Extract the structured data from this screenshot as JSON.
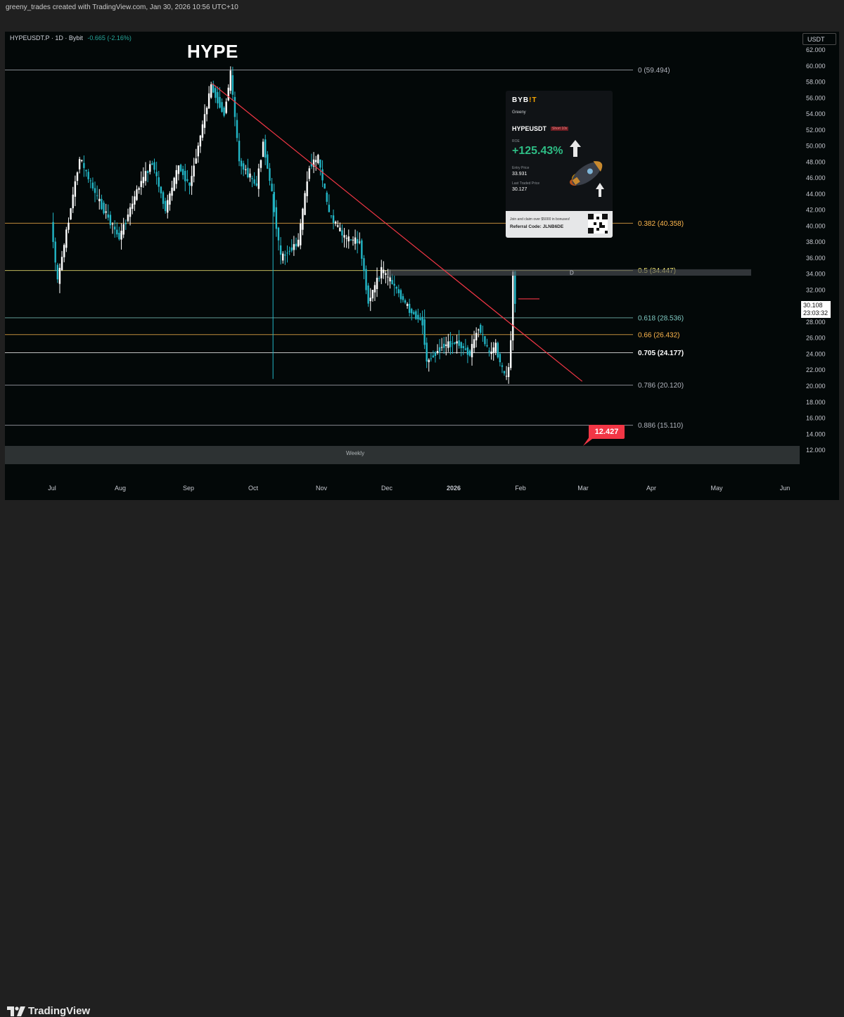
{
  "header": {
    "credit": "greeny_trades created with TradingView.com, Jan 30, 2026 10:56 UTC+10",
    "symbol": "HYPEUSDT.P · 1D · Bybit",
    "change": "-0.665 (-2.16%)",
    "currency_button": "USDT"
  },
  "footer": {
    "logo_text": "TradingView"
  },
  "annotations": {
    "title": "HYPE",
    "weekly": "Weekly",
    "target": "12.427",
    "marker_d": "D"
  },
  "current_price": {
    "value": "30.108",
    "countdown": "23:03:32"
  },
  "promo": {
    "brand": "BYB",
    "brand_accent": "!T",
    "user": "Greeny",
    "pair": "HYPEUSDT",
    "side": "Short 10x",
    "roe_label": "ROE",
    "roe": "+125.43%",
    "entry_label": "Entry Price",
    "entry": "33.931",
    "last_label": "Last Traded Price",
    "last": "30.127",
    "bonus_text": "Join and claim over $5000 in bonuses!",
    "referral": "Referral Code: JLNB6DE"
  },
  "colors": {
    "up": "#ffffff",
    "down": "#22b6c6",
    "trend": "#f23645",
    "background": "#030808"
  },
  "chart_data": {
    "type": "candlestick",
    "y_axis": {
      "range": [
        10,
        63
      ],
      "ticks": [
        "62.000",
        "60.000",
        "58.000",
        "56.000",
        "54.000",
        "52.000",
        "50.000",
        "48.000",
        "46.000",
        "44.000",
        "42.000",
        "40.000",
        "38.000",
        "36.000",
        "34.000",
        "32.000",
        "30.000",
        "28.000",
        "26.000",
        "24.000",
        "22.000",
        "20.000",
        "18.000",
        "16.000",
        "14.000",
        "12.000"
      ]
    },
    "x_axis": {
      "ticks": [
        "Jul",
        "Aug",
        "Sep",
        "Oct",
        "Nov",
        "Dec",
        "2026",
        "Feb",
        "Mar",
        "Apr",
        "May",
        "Jun"
      ]
    },
    "fib_levels": [
      {
        "label": "0 (59.494)",
        "value": 59.494,
        "color": "#b2b5be"
      },
      {
        "label": "0.382 (40.358)",
        "value": 40.358,
        "color": "#ffb74d"
      },
      {
        "label": "0.5 (34.447)",
        "value": 34.447,
        "color": "#fff176"
      },
      {
        "label": "0.618 (28.536)",
        "value": 28.536,
        "color": "#80cbc4"
      },
      {
        "label": "0.66 (26.432)",
        "value": 26.432,
        "color": "#ffb74d"
      },
      {
        "label": "0.705 (24.177)",
        "value": 24.177,
        "color": "#ffffff"
      },
      {
        "label": "0.786 (20.120)",
        "value": 20.12,
        "color": "#b2b5be"
      },
      {
        "label": "0.886 (15.110)",
        "value": 15.11,
        "color": "#b2b5be"
      }
    ],
    "trendline": {
      "from": [
        "Sep 12",
        57.8
      ],
      "to": [
        "Feb 28",
        20.6
      ]
    },
    "weekly_zone": [
      10.1,
      12.5
    ],
    "resistance_zone": [
      33.8,
      34.6
    ],
    "target": 12.427,
    "last_price": 30.108,
    "key_points": [
      {
        "date": "Jul 1",
        "close": 40.5
      },
      {
        "date": "Jul 4",
        "close": 33.0
      },
      {
        "date": "Jul 14",
        "close": 48.5
      },
      {
        "date": "Jul 22",
        "close": 43.5
      },
      {
        "date": "Aug 1",
        "close": 38.5
      },
      {
        "date": "Aug 10",
        "close": 45.0
      },
      {
        "date": "Aug 16",
        "close": 48.0
      },
      {
        "date": "Aug 22",
        "close": 42.0
      },
      {
        "date": "Aug 28",
        "close": 47.5
      },
      {
        "date": "Sep 2",
        "close": 45.0
      },
      {
        "date": "Sep 12",
        "close": 57.5
      },
      {
        "date": "Sep 18",
        "close": 54.0
      },
      {
        "date": "Sep 21",
        "close": 59.0
      },
      {
        "date": "Sep 25",
        "close": 48.0
      },
      {
        "date": "Oct 3",
        "close": 45.0
      },
      {
        "date": "Oct 6",
        "close": 50.5
      },
      {
        "date": "Oct 10",
        "close": 44.0
      },
      {
        "date": "Oct 14",
        "close": 36.0
      },
      {
        "date": "Oct 22",
        "close": 38.0
      },
      {
        "date": "Oct 27",
        "close": 47.5
      },
      {
        "date": "Oct 31",
        "close": 48.5
      },
      {
        "date": "Nov 5",
        "close": 41.5
      },
      {
        "date": "Nov 12",
        "close": 38.5
      },
      {
        "date": "Nov 19",
        "close": 38.0
      },
      {
        "date": "Nov 23",
        "close": 30.5
      },
      {
        "date": "Nov 29",
        "close": 34.5
      },
      {
        "date": "Dec 5",
        "close": 32.5
      },
      {
        "date": "Dec 12",
        "close": 29.5
      },
      {
        "date": "Dec 18",
        "close": 28.0
      },
      {
        "date": "Dec 20",
        "close": 23.0
      },
      {
        "date": "Dec 27",
        "close": 25.0
      },
      {
        "date": "Jan 3",
        "close": 25.5
      },
      {
        "date": "Jan 9",
        "close": 24.0
      },
      {
        "date": "Jan 13",
        "close": 27.5
      },
      {
        "date": "Jan 18",
        "close": 24.0
      },
      {
        "date": "Jan 21",
        "close": 25.0
      },
      {
        "date": "Jan 24",
        "close": 22.0
      },
      {
        "date": "Jan 26",
        "close": 21.0
      },
      {
        "date": "Jan 27",
        "close": 22.5
      },
      {
        "date": "Jan 28",
        "close": 25.5
      },
      {
        "date": "Jan 29",
        "close": 34.5
      },
      {
        "date": "Jan 30",
        "close": 30.108
      }
    ]
  }
}
